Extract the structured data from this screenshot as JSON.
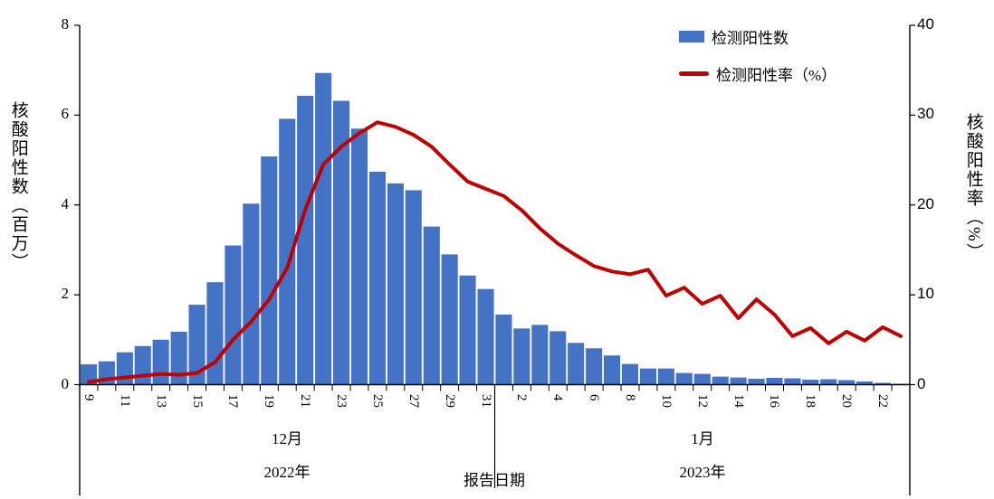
{
  "chart_data": {
    "type": "bar",
    "combo": "bar+line",
    "title": "",
    "categories": [
      "9",
      "10",
      "11",
      "12",
      "13",
      "14",
      "15",
      "16",
      "17",
      "18",
      "19",
      "20",
      "21",
      "22",
      "23",
      "24",
      "25",
      "26",
      "27",
      "28",
      "29",
      "30",
      "31",
      "1",
      "2",
      "3",
      "4",
      "5",
      "6",
      "7",
      "8",
      "9",
      "10",
      "11",
      "12",
      "13",
      "14",
      "15",
      "16",
      "17",
      "18",
      "19",
      "20",
      "21",
      "22",
      "23"
    ],
    "x_axis": {
      "label": "报告日期",
      "tick_label_every": 2,
      "groups": [
        {
          "month": "12月",
          "year": "2022年",
          "days": 23
        },
        {
          "month": "1月",
          "year": "2023年",
          "days": 23
        }
      ]
    },
    "left_axis": {
      "label": "核酸阳性数（百万）",
      "min": 0,
      "max": 8,
      "ticks": [
        8,
        6,
        4,
        2,
        0
      ]
    },
    "right_axis": {
      "label": "核酸阳性率（%）",
      "min": 0,
      "max": 40,
      "ticks": [
        40,
        30,
        20,
        10,
        0
      ]
    },
    "legend_position": "top-right",
    "grid": false,
    "series": [
      {
        "name": "检测阳性数",
        "type": "bar",
        "axis": "left",
        "color": "#4472C4",
        "values": [
          0.45,
          0.52,
          0.72,
          0.86,
          1.0,
          1.18,
          1.78,
          2.28,
          3.1,
          4.03,
          5.08,
          5.92,
          6.43,
          6.94,
          6.32,
          5.7,
          4.74,
          4.48,
          4.33,
          3.52,
          2.9,
          2.43,
          2.13,
          1.56,
          1.25,
          1.33,
          1.19,
          0.93,
          0.81,
          0.65,
          0.46,
          0.36,
          0.36,
          0.26,
          0.24,
          0.18,
          0.16,
          0.13,
          0.15,
          0.14,
          0.11,
          0.12,
          0.1,
          0.07,
          0.04,
          0.02
        ]
      },
      {
        "name": "检测阳性率（%）",
        "type": "line",
        "axis": "right",
        "color": "#C00000",
        "values": [
          0.3,
          0.6,
          0.8,
          1.0,
          1.2,
          1.1,
          1.3,
          2.5,
          5.0,
          7.0,
          9.5,
          13.0,
          19.5,
          24.5,
          26.5,
          28.0,
          29.2,
          28.7,
          27.8,
          26.5,
          24.5,
          22.6,
          21.8,
          21.0,
          19.4,
          17.4,
          15.7,
          14.4,
          13.2,
          12.6,
          12.3,
          12.8,
          9.9,
          10.8,
          9.0,
          9.9,
          7.4,
          9.5,
          7.8,
          5.4,
          6.3,
          4.6,
          5.9,
          4.9,
          6.4,
          5.4
        ]
      }
    ]
  }
}
